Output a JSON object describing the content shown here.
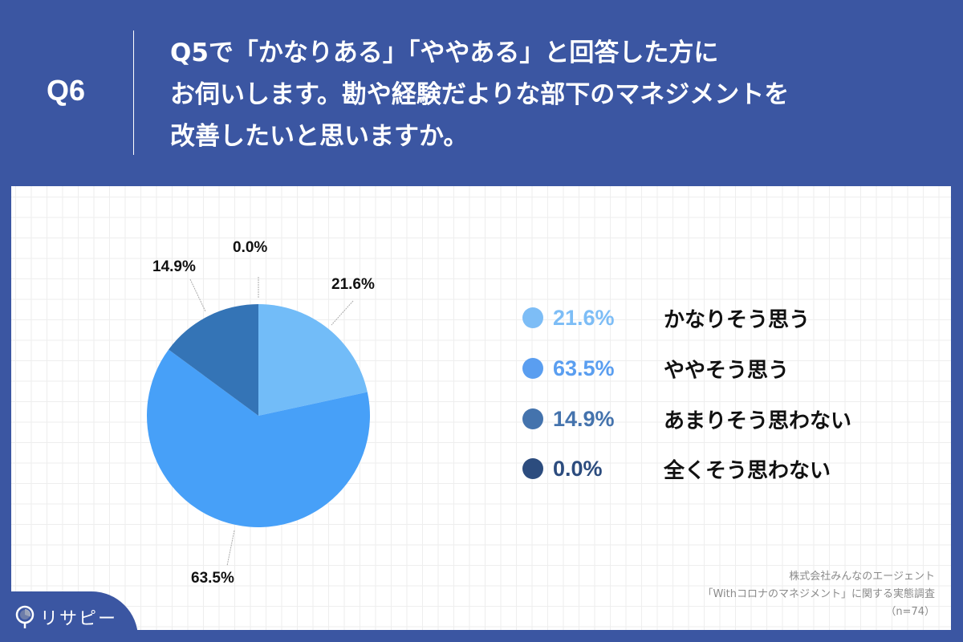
{
  "header": {
    "question_number": "Q6",
    "question_lines": [
      "Q5で「かなりある」「ややある」と回答した方に",
      "お伺いします。勘や経験だよりな部下のマネジメントを",
      "改善したいと思いますか。"
    ]
  },
  "chart_data": {
    "type": "pie",
    "title": "Q5で「かなりある」「ややある」と回答した方にお伺いします。勘や経験だよりな部下のマネジメントを改善したいと思いますか。",
    "categories": [
      "かなりそう思う",
      "ややそう思う",
      "あまりそう思わない",
      "全くそう思わない"
    ],
    "values": [
      21.6,
      63.5,
      14.9,
      0.0
    ],
    "value_labels": [
      "21.6%",
      "63.5%",
      "14.9%",
      "0.0%"
    ],
    "colors": [
      "#72bcf8",
      "#47a0f8",
      "#3474b6",
      "#2a4f80"
    ],
    "start_angle": "12 o'clock, clockwise",
    "legend_position": "right",
    "n": 74
  },
  "legend": [
    {
      "pct": "21.6%",
      "label": "かなりそう思う",
      "dot_color": "#7dbdf6",
      "pct_color": "#7dbdf6"
    },
    {
      "pct": "63.5%",
      "label": "ややそう思う",
      "dot_color": "#5a9ef0",
      "pct_color": "#5a9ef0"
    },
    {
      "pct": "14.9%",
      "label": "あまりそう思わない",
      "dot_color": "#4473ad",
      "pct_color": "#4473ad"
    },
    {
      "pct": "0.0%",
      "label": "全くそう思わない",
      "dot_color": "#2c4c7e",
      "pct_color": "#2c4c7e"
    }
  ],
  "pie_labels": {
    "zero": "0.0%",
    "slice1": "21.6%",
    "slice2": "63.5%",
    "slice3": "14.9%"
  },
  "source": {
    "company": "株式会社みんなのエージェント",
    "survey": "「Withコロナのマネジメント」に関する実態調査",
    "sample": "（n=74）"
  },
  "logo": {
    "text": "リサピー"
  }
}
